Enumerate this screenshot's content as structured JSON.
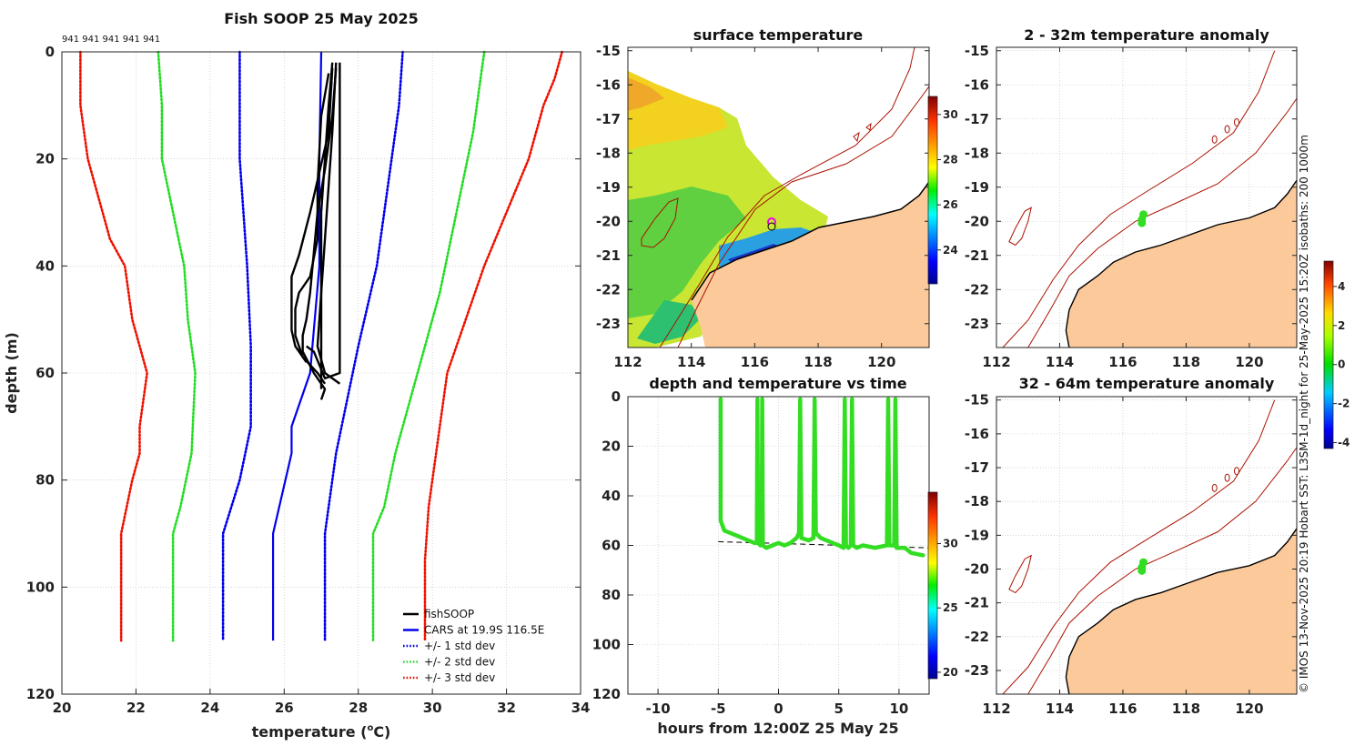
{
  "chart_data": [
    {
      "id": "profile",
      "type": "line",
      "title": "Fish SOOP 25 May 2025",
      "xlabel": "temperature (°C)",
      "ylabel": "depth (m)",
      "xlim": [
        20,
        34
      ],
      "ylim": [
        0,
        120
      ],
      "y_inverted": true,
      "xticks": [
        20,
        22,
        24,
        26,
        28,
        30,
        32,
        34
      ],
      "yticks": [
        0,
        20,
        40,
        60,
        80,
        100,
        120
      ],
      "top_annotation": "941 941 941 941 941",
      "legend_position": "bottom-right",
      "legend": [
        {
          "label": "fishSOOP",
          "color": "#000000",
          "style": "solid"
        },
        {
          "label": "CARS at 19.9S 116.5E",
          "color": "#0000ee",
          "style": "solid"
        },
        {
          "label": "+/- 1 std dev",
          "color": "#0000ee",
          "style": "dotted"
        },
        {
          "label": "+/- 2 std dev",
          "color": "#22dd22",
          "style": "dotted"
        },
        {
          "label": "+/- 3 std dev",
          "color": "#ee1100",
          "style": "dotted"
        }
      ],
      "series": [
        {
          "name": "CARS at 19.9S 116.5E",
          "color": "#0000ee",
          "style": "solid",
          "points": [
            [
              27.0,
              0
            ],
            [
              26.95,
              20
            ],
            [
              26.95,
              40
            ],
            [
              26.7,
              60
            ],
            [
              26.2,
              70
            ],
            [
              26.2,
              75
            ],
            [
              25.7,
              90
            ],
            [
              25.7,
              110
            ]
          ]
        },
        {
          "name": "-1 std dev",
          "color": "#0000ee",
          "style": "dotted",
          "points": [
            [
              24.8,
              0
            ],
            [
              24.8,
              10
            ],
            [
              24.8,
              20
            ],
            [
              24.9,
              30
            ],
            [
              25.0,
              40
            ],
            [
              25.1,
              55
            ],
            [
              25.1,
              70
            ],
            [
              24.8,
              80
            ],
            [
              24.35,
              90
            ],
            [
              24.35,
              110
            ]
          ]
        },
        {
          "name": "+1 std dev",
          "color": "#0000ee",
          "style": "dotted",
          "points": [
            [
              29.2,
              0
            ],
            [
              29.1,
              10
            ],
            [
              28.9,
              20
            ],
            [
              28.5,
              40
            ],
            [
              28.0,
              55
            ],
            [
              27.7,
              65
            ],
            [
              27.4,
              75
            ],
            [
              27.1,
              90
            ],
            [
              27.1,
              110
            ]
          ]
        },
        {
          "name": "-2 std dev",
          "color": "#22dd22",
          "style": "dotted",
          "points": [
            [
              22.6,
              0
            ],
            [
              22.7,
              10
            ],
            [
              22.7,
              20
            ],
            [
              23.0,
              30
            ],
            [
              23.3,
              40
            ],
            [
              23.4,
              50
            ],
            [
              23.6,
              60
            ],
            [
              23.5,
              75
            ],
            [
              23.2,
              85
            ],
            [
              23.0,
              90
            ],
            [
              23.0,
              110
            ]
          ]
        },
        {
          "name": "+2 std dev",
          "color": "#22dd22",
          "style": "dotted",
          "points": [
            [
              31.4,
              0
            ],
            [
              31.3,
              5
            ],
            [
              31.1,
              15
            ],
            [
              30.8,
              25
            ],
            [
              30.5,
              35
            ],
            [
              30.2,
              45
            ],
            [
              29.8,
              55
            ],
            [
              29.4,
              65
            ],
            [
              29.0,
              75
            ],
            [
              28.7,
              85
            ],
            [
              28.4,
              90
            ],
            [
              28.4,
              110
            ]
          ]
        },
        {
          "name": "-3 std dev",
          "color": "#ee1100",
          "style": "dotted",
          "points": [
            [
              20.5,
              0
            ],
            [
              20.5,
              5
            ],
            [
              20.5,
              10
            ],
            [
              20.7,
              20
            ],
            [
              21.3,
              35
            ],
            [
              21.7,
              40
            ],
            [
              21.9,
              50
            ],
            [
              22.3,
              60
            ],
            [
              22.1,
              70
            ],
            [
              22.1,
              75
            ],
            [
              21.9,
              80
            ],
            [
              21.6,
              90
            ],
            [
              21.6,
              110
            ]
          ]
        },
        {
          "name": "+3 std dev",
          "color": "#ee1100",
          "style": "dotted",
          "points": [
            [
              33.5,
              0
            ],
            [
              33.3,
              5
            ],
            [
              33.0,
              10
            ],
            [
              32.6,
              20
            ],
            [
              32.0,
              30
            ],
            [
              31.4,
              40
            ],
            [
              30.9,
              50
            ],
            [
              30.4,
              60
            ],
            [
              30.2,
              70
            ],
            [
              29.9,
              85
            ],
            [
              29.8,
              95
            ],
            [
              29.8,
              110
            ]
          ]
        }
      ],
      "fishSOOP_casts": [
        [
          [
            27.3,
            2
          ],
          [
            27.2,
            10
          ],
          [
            27.1,
            20
          ],
          [
            27.0,
            30
          ],
          [
            27.0,
            40
          ],
          [
            27.0,
            50
          ],
          [
            27.0,
            58
          ],
          [
            27.0,
            63
          ]
        ],
        [
          [
            27.4,
            2
          ],
          [
            27.3,
            15
          ],
          [
            27.2,
            25
          ],
          [
            27.1,
            35
          ],
          [
            27.0,
            45
          ],
          [
            26.9,
            55
          ],
          [
            27.1,
            60
          ],
          [
            27.5,
            62
          ]
        ],
        [
          [
            27.5,
            2
          ],
          [
            27.5,
            20
          ],
          [
            27.5,
            40
          ],
          [
            27.5,
            60
          ],
          [
            27.1,
            61
          ],
          [
            26.8,
            56
          ],
          [
            26.6,
            55
          ]
        ],
        [
          [
            27.3,
            3
          ],
          [
            27.2,
            15
          ],
          [
            26.7,
            30
          ],
          [
            26.4,
            38
          ],
          [
            26.2,
            42
          ],
          [
            26.2,
            48
          ],
          [
            26.2,
            52
          ],
          [
            26.3,
            55
          ],
          [
            26.6,
            58
          ]
        ],
        [
          [
            27.2,
            4
          ],
          [
            27.0,
            12
          ],
          [
            26.9,
            25
          ],
          [
            26.9,
            35
          ],
          [
            26.7,
            42
          ],
          [
            26.4,
            45
          ],
          [
            26.3,
            48
          ],
          [
            26.3,
            53
          ],
          [
            26.5,
            57
          ],
          [
            26.9,
            60
          ],
          [
            27.1,
            62
          ]
        ],
        [
          [
            27.4,
            3
          ],
          [
            27.3,
            12
          ],
          [
            27.1,
            22
          ],
          [
            26.9,
            30
          ],
          [
            26.7,
            45
          ],
          [
            26.6,
            50
          ],
          [
            26.5,
            53
          ],
          [
            26.5,
            56
          ],
          [
            26.8,
            60
          ],
          [
            27.1,
            63
          ],
          [
            27.0,
            65
          ]
        ]
      ]
    },
    {
      "id": "sst",
      "type": "heatmap",
      "title": "surface temperature",
      "xlim": [
        112,
        121.5
      ],
      "ylim": [
        -23.7,
        -14.9
      ],
      "xticks": [
        112,
        114,
        116,
        118,
        120
      ],
      "yticks": [
        -15,
        -16,
        -17,
        -18,
        -19,
        -20,
        -21,
        -22,
        -23
      ],
      "colorbar_range": [
        22.5,
        30.8
      ],
      "colorbar_ticks": [
        24,
        26,
        28,
        30
      ],
      "sample_location": [
        116.65,
        -19.85
      ]
    },
    {
      "id": "depthtime",
      "type": "scatter",
      "title": "depth and temperature vs time",
      "xlabel": "hours from 12:00Z 25 May 25",
      "xlim": [
        -12.5,
        12.5
      ],
      "ylim": [
        0,
        120
      ],
      "y_inverted": true,
      "xticks": [
        -10,
        -5,
        0,
        5,
        10
      ],
      "yticks": [
        0,
        20,
        40,
        60,
        80,
        100,
        120
      ],
      "colorbar_range": [
        19.5,
        34
      ],
      "colorbar_ticks": [
        20,
        25,
        30
      ],
      "bottom_reference": {
        "x": [
          -5,
          12.5
        ],
        "y": [
          58.5,
          61
        ]
      },
      "track": [
        [
          -4.8,
          1
        ],
        [
          -4.8,
          50
        ],
        [
          -4.5,
          54
        ],
        [
          -3.5,
          56
        ],
        [
          -2.5,
          58
        ],
        [
          -2.0,
          59
        ],
        [
          -1.8,
          59
        ],
        [
          -1.75,
          1
        ],
        [
          -1.7,
          59
        ],
        [
          -1.5,
          60
        ],
        [
          -1.4,
          59
        ],
        [
          -1.35,
          1
        ],
        [
          -1.3,
          60
        ],
        [
          -1.0,
          61
        ],
        [
          -0.5,
          60
        ],
        [
          0.0,
          59
        ],
        [
          0.5,
          60
        ],
        [
          1.0,
          59
        ],
        [
          1.5,
          57
        ],
        [
          1.7,
          55
        ],
        [
          1.8,
          1
        ],
        [
          1.9,
          57
        ],
        [
          2.5,
          58
        ],
        [
          2.9,
          57
        ],
        [
          3.0,
          1
        ],
        [
          3.1,
          55
        ],
        [
          3.5,
          57
        ],
        [
          4.5,
          59
        ],
        [
          5.0,
          60
        ],
        [
          5.4,
          61
        ],
        [
          5.5,
          1
        ],
        [
          5.6,
          60
        ],
        [
          5.8,
          61
        ],
        [
          6.0,
          60
        ],
        [
          6.1,
          1
        ],
        [
          6.2,
          60
        ],
        [
          6.5,
          61
        ],
        [
          7.0,
          60
        ],
        [
          8.0,
          61
        ],
        [
          9.0,
          60
        ],
        [
          9.1,
          1
        ],
        [
          9.2,
          60
        ],
        [
          9.6,
          60
        ],
        [
          9.7,
          1
        ],
        [
          9.8,
          61
        ],
        [
          10.5,
          61
        ],
        [
          11.0,
          63
        ],
        [
          12.0,
          64
        ]
      ]
    },
    {
      "id": "anom1",
      "type": "heatmap",
      "title": "2 - 32m temperature anomaly",
      "xlim": [
        112,
        121.5
      ],
      "ylim": [
        -23.7,
        -14.9
      ],
      "xticks": [
        112,
        114,
        116,
        118,
        120
      ],
      "yticks": [
        -15,
        -16,
        -17,
        -18,
        -19,
        -20,
        -21,
        -22,
        -23
      ],
      "colorbar_range": [
        -4.3,
        5.3
      ],
      "colorbar_ticks": [
        4,
        2,
        0,
        -2,
        -4
      ],
      "anomaly_points": [
        [
          116.65,
          -19.8
        ],
        [
          116.6,
          -19.95
        ],
        [
          116.6,
          -20.05
        ]
      ]
    },
    {
      "id": "anom2",
      "type": "heatmap",
      "title": "32 - 64m temperature anomaly",
      "xlim": [
        112,
        121.5
      ],
      "ylim": [
        -23.7,
        -14.9
      ],
      "xticks": [
        112,
        114,
        116,
        118,
        120
      ],
      "yticks": [
        -15,
        -16,
        -17,
        -18,
        -19,
        -20,
        -21,
        -22,
        -23
      ],
      "anomaly_points": [
        [
          116.65,
          -19.8
        ],
        [
          116.6,
          -19.95
        ],
        [
          116.6,
          -20.05
        ]
      ]
    }
  ],
  "credit": "© IMOS 13-Nov-2025 20:19 Hobart SST: L3SM-1d_night for 25-May-2025 15:20Z isobaths: 200  1000m",
  "colors": {
    "land": "#fbc99a",
    "isobath": "#aa1100",
    "coast": "#000000",
    "track_green": "#33dd22",
    "grid": "#bbbbbb"
  }
}
